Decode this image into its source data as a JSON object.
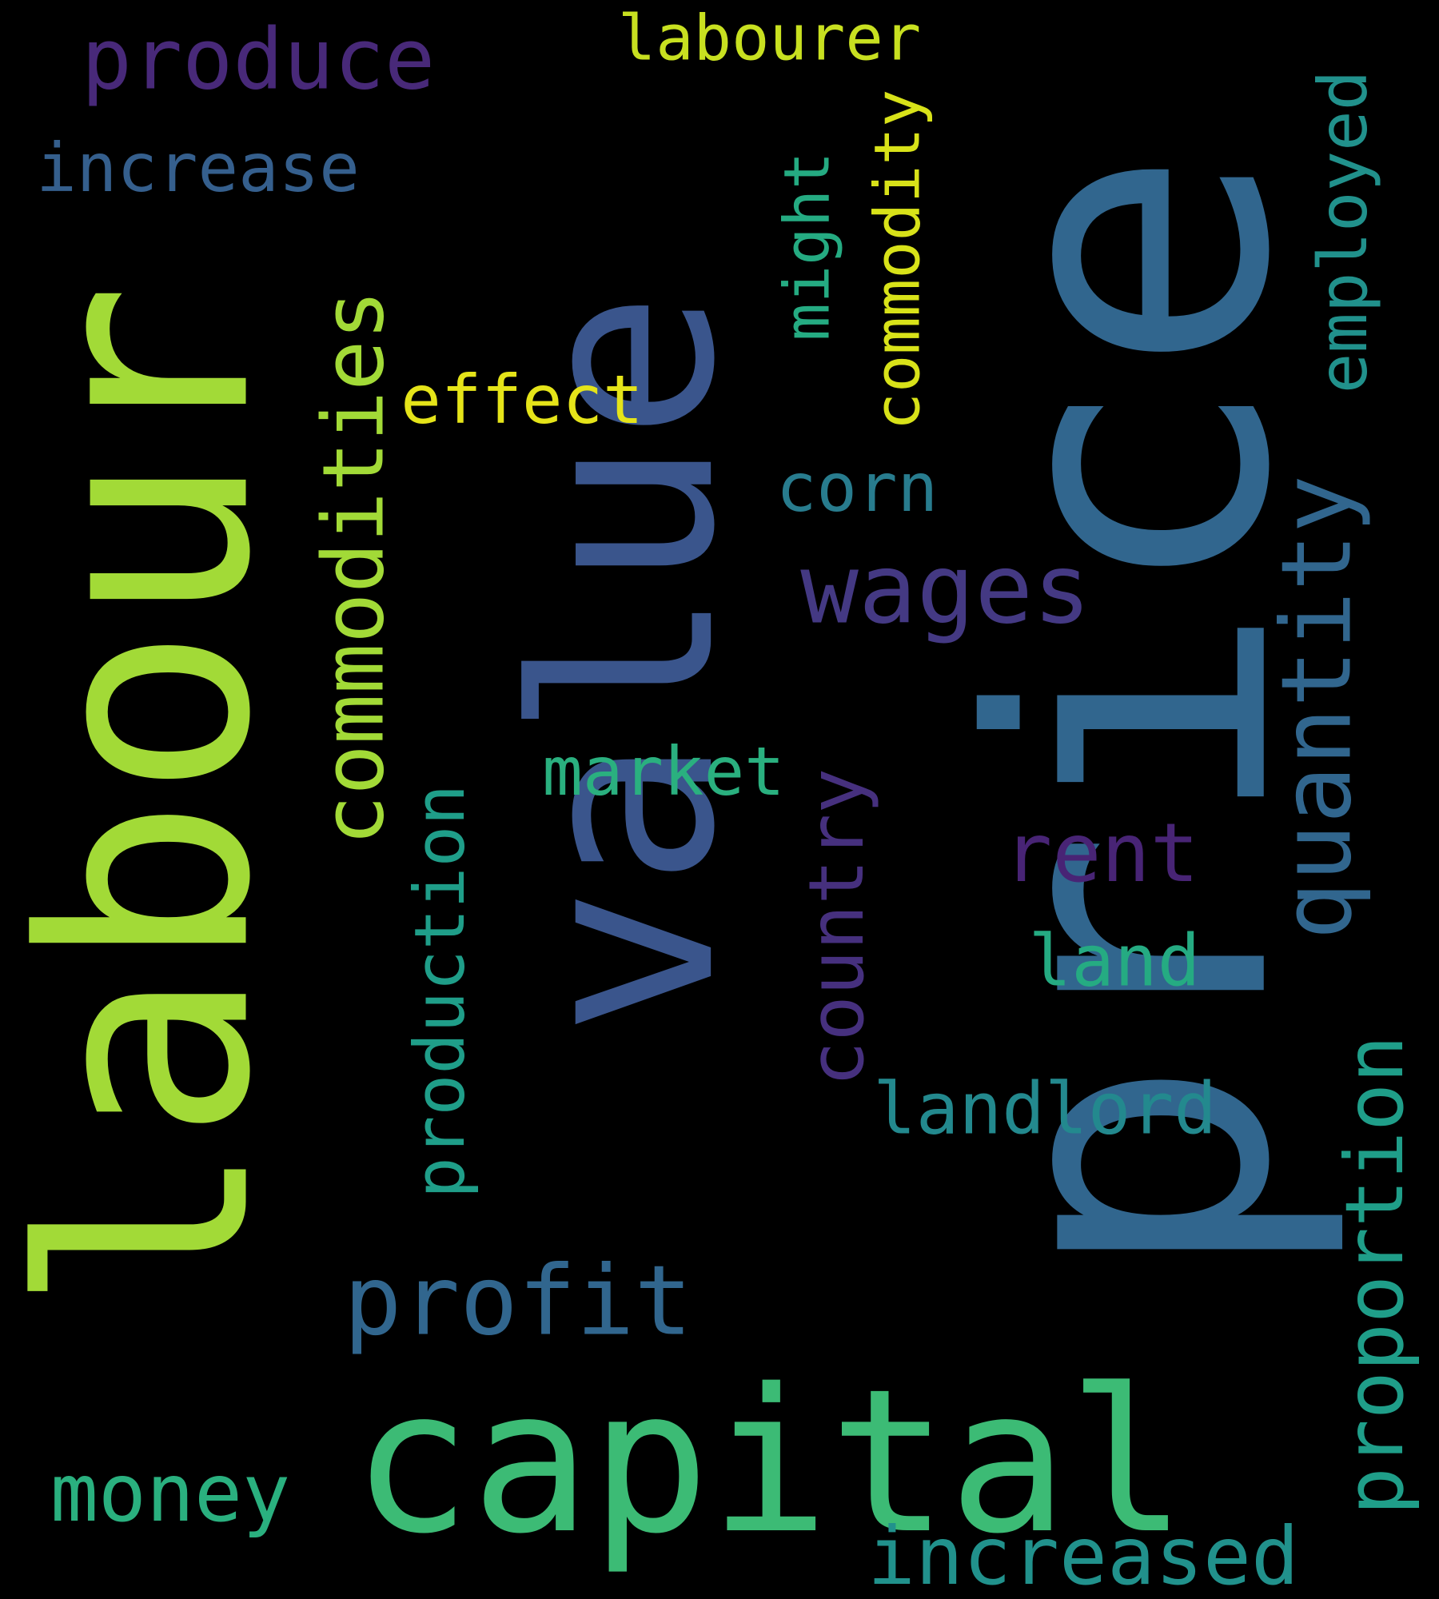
{
  "words": [
    {
      "id": "price",
      "text": "price",
      "color": "#31668e"
    },
    {
      "id": "value",
      "text": "value",
      "color": "#3a558c"
    },
    {
      "id": "labour",
      "text": "labour",
      "color": "#a2da37"
    },
    {
      "id": "capital",
      "text": "capital",
      "color": "#3cbb75"
    },
    {
      "id": "commodities",
      "text": "commodities",
      "color": "#a2da37"
    },
    {
      "id": "produce",
      "text": "produce",
      "color": "#482979"
    },
    {
      "id": "profit",
      "text": "profit",
      "color": "#31668e"
    },
    {
      "id": "quantity",
      "text": "quantity",
      "color": "#31668e"
    },
    {
      "id": "wages",
      "text": "wages",
      "color": "#443983"
    },
    {
      "id": "money",
      "text": "money",
      "color": "#2ab07f"
    },
    {
      "id": "labourer",
      "text": "labourer",
      "color": "#c8e020"
    },
    {
      "id": "increase",
      "text": "increase",
      "color": "#355f8d"
    },
    {
      "id": "employed",
      "text": "employed",
      "color": "#21918c"
    },
    {
      "id": "effect",
      "text": "effect",
      "color": "#e5e419"
    },
    {
      "id": "commodity",
      "text": "commodity",
      "color": "#d8e219"
    },
    {
      "id": "might",
      "text": "might",
      "color": "#25ab82"
    },
    {
      "id": "corn",
      "text": "corn",
      "color": "#287c8e"
    },
    {
      "id": "production",
      "text": "production",
      "color": "#1f9e89"
    },
    {
      "id": "market",
      "text": "market",
      "color": "#2ab07f"
    },
    {
      "id": "country",
      "text": "country",
      "color": "#46307e"
    },
    {
      "id": "rent",
      "text": "rent",
      "color": "#482475"
    },
    {
      "id": "land",
      "text": "land",
      "color": "#25ab82"
    },
    {
      "id": "landlord",
      "text": "landlord",
      "color": "#23898e"
    },
    {
      "id": "proportion",
      "text": "proportion",
      "color": "#1f9e89"
    },
    {
      "id": "increased",
      "text": "increased",
      "color": "#21918c"
    }
  ]
}
